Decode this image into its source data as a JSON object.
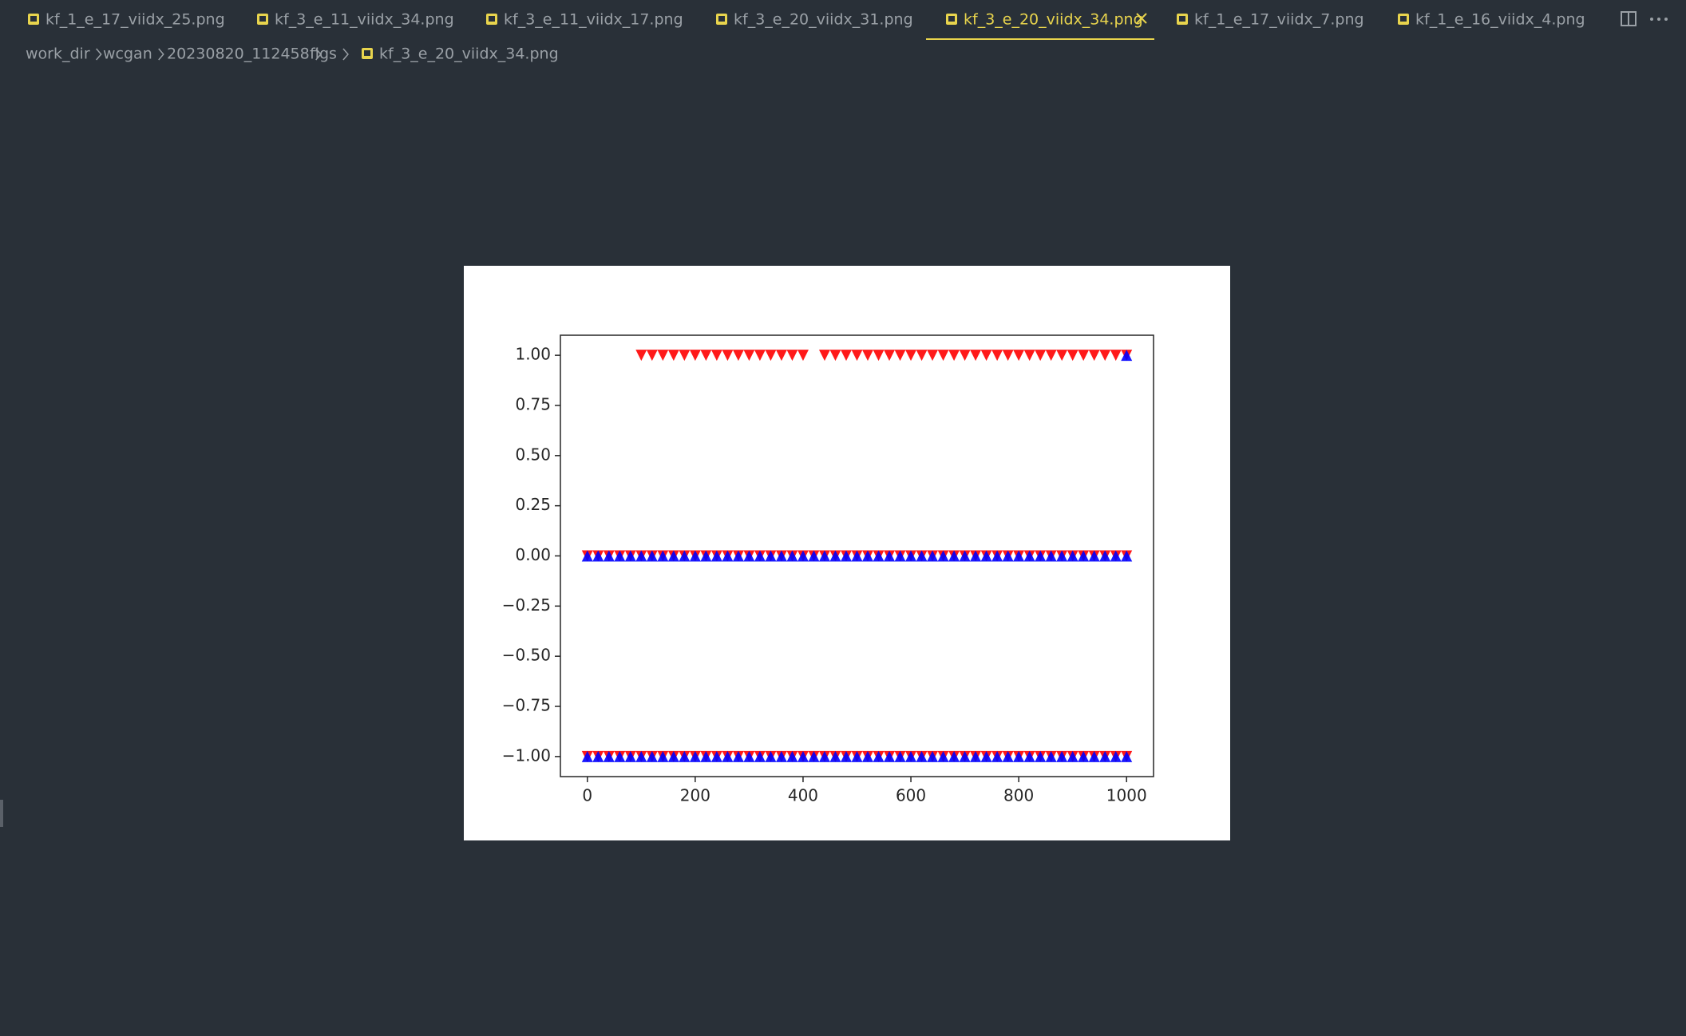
{
  "tabs": [
    "kf_1_e_17_viidx_25.png",
    "kf_3_e_11_viidx_34.png",
    "kf_3_e_11_viidx_17.png",
    "kf_3_e_20_viidx_31.png",
    "kf_3_e_20_viidx_34.png",
    "kf_1_e_17_viidx_7.png",
    "kf_1_e_16_viidx_4.png"
  ],
  "active_tab": 4,
  "breadcrumb": [
    "work_dir",
    "wcgan",
    "20230820_112458",
    "figs",
    "kf_3_e_20_viidx_34.png"
  ],
  "chart_data": {
    "type": "scatter",
    "xlim": [
      -50,
      1050
    ],
    "ylim": [
      -1.1,
      1.1
    ],
    "xticks": [
      0,
      200,
      400,
      600,
      800,
      1000
    ],
    "yticks": [
      {
        "value": -1,
        "label": "−1.00"
      },
      {
        "value": -0.75,
        "label": "−0.75"
      },
      {
        "value": -0.5,
        "label": "−0.50"
      },
      {
        "value": -0.25,
        "label": "−0.25"
      },
      {
        "value": 0,
        "label": "0.00"
      },
      {
        "value": 0.25,
        "label": "0.25"
      },
      {
        "value": 0.5,
        "label": "0.50"
      },
      {
        "value": 0.75,
        "label": "0.75"
      },
      {
        "value": 1,
        "label": "1.00"
      }
    ],
    "series": [
      {
        "color": "#ff0000",
        "marker": "v",
        "x": [
          100,
          120,
          140,
          160,
          180,
          200,
          220,
          240,
          260,
          280,
          300,
          320,
          340,
          360,
          380,
          400,
          440,
          460,
          480,
          500,
          520,
          540,
          560,
          580,
          600,
          620,
          640,
          660,
          680,
          700,
          720,
          740,
          760,
          780,
          800,
          820,
          840,
          860,
          880,
          900,
          920,
          940,
          960,
          980,
          1000
        ],
        "values": [
          1,
          1,
          1,
          1,
          1,
          1,
          1,
          1,
          1,
          1,
          1,
          1,
          1,
          1,
          1,
          1,
          1,
          1,
          1,
          1,
          1,
          1,
          1,
          1,
          1,
          1,
          1,
          1,
          1,
          1,
          1,
          1,
          1,
          1,
          1,
          1,
          1,
          1,
          1,
          1,
          1,
          1,
          1,
          1,
          1
        ]
      },
      {
        "color": "#ff0000",
        "marker": "v",
        "x": [
          0,
          20,
          40,
          60,
          80,
          100,
          120,
          140,
          160,
          180,
          200,
          220,
          240,
          260,
          280,
          300,
          320,
          340,
          360,
          380,
          400,
          420,
          440,
          460,
          480,
          500,
          520,
          540,
          560,
          580,
          600,
          620,
          640,
          660,
          680,
          700,
          720,
          740,
          760,
          780,
          800,
          820,
          840,
          860,
          880,
          900,
          920,
          940,
          960,
          980,
          1000
        ],
        "values": [
          0,
          0,
          0,
          0,
          0,
          0,
          0,
          0,
          0,
          0,
          0,
          0,
          0,
          0,
          0,
          0,
          0,
          0,
          0,
          0,
          0,
          0,
          0,
          0,
          0,
          0,
          0,
          0,
          0,
          0,
          0,
          0,
          0,
          0,
          0,
          0,
          0,
          0,
          0,
          0,
          0,
          0,
          0,
          0,
          0,
          0,
          0,
          0,
          0,
          0,
          0
        ]
      },
      {
        "color": "#ff0000",
        "marker": "v",
        "x": [
          0,
          20,
          40,
          60,
          80,
          100,
          120,
          140,
          160,
          180,
          200,
          220,
          240,
          260,
          280,
          300,
          320,
          340,
          360,
          380,
          400,
          420,
          440,
          460,
          480,
          500,
          520,
          540,
          560,
          580,
          600,
          620,
          640,
          660,
          680,
          700,
          720,
          740,
          760,
          780,
          800,
          820,
          840,
          860,
          880,
          900,
          920,
          940,
          960,
          980,
          1000
        ],
        "values": [
          -1,
          -1,
          -1,
          -1,
          -1,
          -1,
          -1,
          -1,
          -1,
          -1,
          -1,
          -1,
          -1,
          -1,
          -1,
          -1,
          -1,
          -1,
          -1,
          -1,
          -1,
          -1,
          -1,
          -1,
          -1,
          -1,
          -1,
          -1,
          -1,
          -1,
          -1,
          -1,
          -1,
          -1,
          -1,
          -1,
          -1,
          -1,
          -1,
          -1,
          -1,
          -1,
          -1,
          -1,
          -1,
          -1,
          -1,
          -1,
          -1,
          -1,
          -1
        ]
      },
      {
        "color": "#0000ff",
        "marker": "^",
        "x": [
          0,
          20,
          40,
          60,
          80,
          100,
          120,
          140,
          160,
          180,
          200,
          220,
          240,
          260,
          280,
          300,
          320,
          340,
          360,
          380,
          400,
          420,
          440,
          460,
          480,
          500,
          520,
          540,
          560,
          580,
          600,
          620,
          640,
          660,
          680,
          700,
          720,
          740,
          760,
          780,
          800,
          820,
          840,
          860,
          880,
          900,
          920,
          940,
          960,
          980,
          1000
        ],
        "values": [
          0,
          0,
          0,
          0,
          0,
          0,
          0,
          0,
          0,
          0,
          0,
          0,
          0,
          0,
          0,
          0,
          0,
          0,
          0,
          0,
          0,
          0,
          0,
          0,
          0,
          0,
          0,
          0,
          0,
          0,
          0,
          0,
          0,
          0,
          0,
          0,
          0,
          0,
          0,
          0,
          0,
          0,
          0,
          0,
          0,
          0,
          0,
          0,
          0,
          0,
          0
        ]
      },
      {
        "color": "#0000ff",
        "marker": "^",
        "x": [
          0,
          20,
          40,
          60,
          80,
          100,
          120,
          140,
          160,
          180,
          200,
          220,
          240,
          260,
          280,
          300,
          320,
          340,
          360,
          380,
          400,
          420,
          440,
          460,
          480,
          500,
          520,
          540,
          560,
          580,
          600,
          620,
          640,
          660,
          680,
          700,
          720,
          740,
          760,
          780,
          800,
          820,
          840,
          860,
          880,
          900,
          920,
          940,
          960,
          980,
          1000
        ],
        "values": [
          -1,
          -1,
          -1,
          -1,
          -1,
          -1,
          -1,
          -1,
          -1,
          -1,
          -1,
          -1,
          -1,
          -1,
          -1,
          -1,
          -1,
          -1,
          -1,
          -1,
          -1,
          -1,
          -1,
          -1,
          -1,
          -1,
          -1,
          -1,
          -1,
          -1,
          -1,
          -1,
          -1,
          -1,
          -1,
          -1,
          -1,
          -1,
          -1,
          -1,
          -1,
          -1,
          -1,
          -1,
          -1,
          -1,
          -1,
          -1,
          -1,
          -1,
          -1
        ]
      },
      {
        "color": "#0000ff",
        "marker": "^",
        "x": [
          1000
        ],
        "values": [
          1
        ]
      }
    ]
  }
}
